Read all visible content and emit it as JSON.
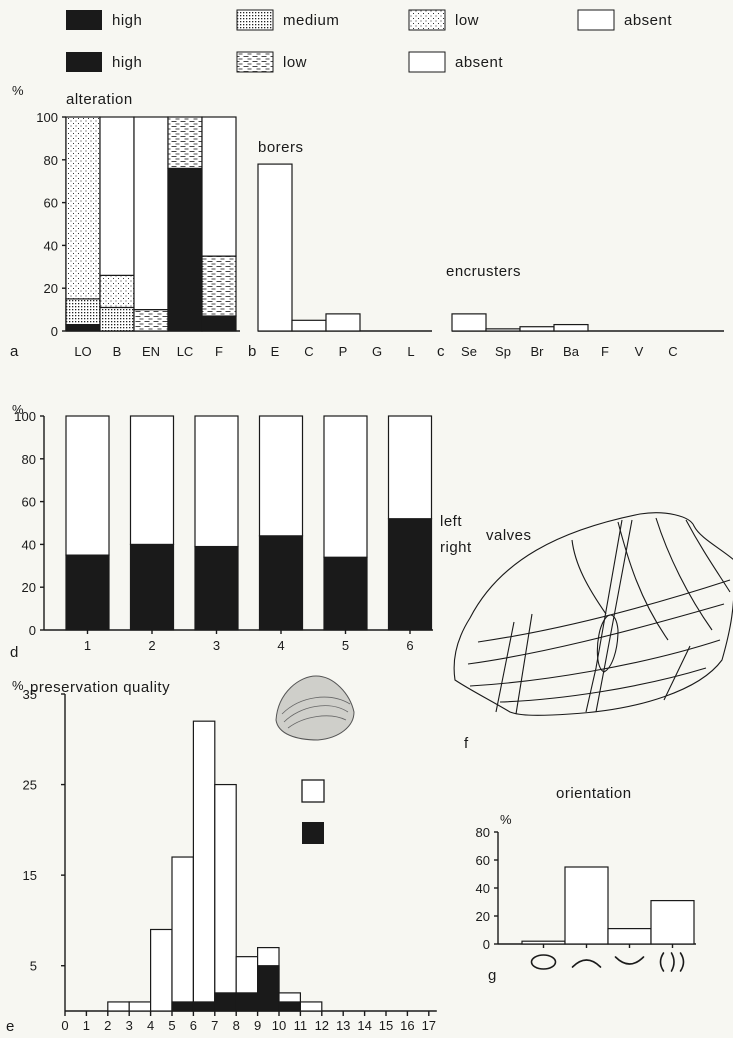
{
  "legend": {
    "alteration_row": [
      {
        "label": "high",
        "pattern": "solid"
      },
      {
        "label": "medium",
        "pattern": "dense-dots"
      },
      {
        "label": "low",
        "pattern": "sparse-dots"
      },
      {
        "label": "absent",
        "pattern": "empty"
      }
    ],
    "bioerosion_row": [
      {
        "label": "high",
        "pattern": "solid"
      },
      {
        "label": "low",
        "pattern": "dashes"
      },
      {
        "label": "absent",
        "pattern": "empty"
      }
    ]
  },
  "colors": {
    "ink": "#1a1a1a",
    "paper": "#f7f7f2"
  },
  "charts": {
    "a": {
      "panel_letter": "a",
      "title": "alteration",
      "unit": "%"
    },
    "b": {
      "panel_letter": "b",
      "title": "borers"
    },
    "c": {
      "panel_letter": "c",
      "title": "encrusters"
    },
    "d": {
      "panel_letter": "d",
      "unit": "%",
      "label_left": "left",
      "label_right": "right",
      "label_valves": "valves"
    },
    "e": {
      "panel_letter": "e",
      "title": "preservation quality",
      "unit": "%"
    },
    "f": {
      "panel_letter": "f"
    },
    "g": {
      "panel_letter": "g",
      "title": "orientation",
      "unit": "%"
    }
  },
  "chart_data": [
    {
      "id": "a",
      "type": "bar",
      "stacked": true,
      "title": "alteration",
      "ylabel": "%",
      "ylim": [
        0,
        100
      ],
      "yticks": [
        0,
        20,
        40,
        60,
        80,
        100
      ],
      "categories": [
        "LO",
        "B",
        "EN",
        "LC",
        "F"
      ],
      "series": [
        {
          "name": "high",
          "pattern": "solid",
          "values": [
            3,
            0,
            0,
            76,
            7
          ]
        },
        {
          "name": "medium",
          "pattern": "dense-dots",
          "values": [
            12,
            11,
            0,
            0,
            0
          ]
        },
        {
          "name": "low",
          "pattern": "sparse-dots",
          "values": [
            85,
            15,
            0,
            0,
            0
          ]
        },
        {
          "name": "low",
          "pattern": "dashes",
          "values": [
            0,
            0,
            10,
            24,
            28
          ]
        },
        {
          "name": "absent",
          "pattern": "empty",
          "values": [
            0,
            74,
            90,
            0,
            65
          ]
        }
      ]
    },
    {
      "id": "b",
      "type": "bar",
      "title": "borers",
      "ylim": [
        0,
        100
      ],
      "categories": [
        "E",
        "C",
        "P",
        "G",
        "L"
      ],
      "values": [
        78,
        5,
        8,
        0,
        0
      ]
    },
    {
      "id": "c",
      "type": "bar",
      "title": "encrusters",
      "ylim": [
        0,
        100
      ],
      "categories": [
        "Se",
        "Sp",
        "Br",
        "Ba",
        "F",
        "V",
        "C"
      ],
      "values": [
        8,
        1,
        2,
        3,
        0,
        0,
        0
      ]
    },
    {
      "id": "d",
      "type": "bar",
      "stacked": true,
      "ylabel": "%",
      "ylim": [
        0,
        100
      ],
      "yticks": [
        0,
        20,
        40,
        60,
        80,
        100
      ],
      "categories": [
        "1",
        "2",
        "3",
        "4",
        "5",
        "6"
      ],
      "series": [
        {
          "name": "right",
          "pattern": "solid",
          "values": [
            35,
            40,
            39,
            44,
            34,
            52
          ]
        },
        {
          "name": "left",
          "pattern": "empty",
          "values": [
            65,
            60,
            61,
            56,
            66,
            48
          ]
        }
      ]
    },
    {
      "id": "e",
      "type": "bar",
      "title": "preservation quality",
      "ylabel": "%",
      "ylim": [
        0,
        35
      ],
      "yticks": [
        5,
        15,
        25,
        35
      ],
      "categories": [
        "0",
        "1",
        "2",
        "3",
        "4",
        "5",
        "6",
        "7",
        "8",
        "9",
        "10",
        "11",
        "12",
        "13",
        "14",
        "15",
        "16",
        "17"
      ],
      "series": [
        {
          "name": "total",
          "pattern": "empty",
          "values": [
            0,
            0,
            1,
            1,
            9,
            17,
            32,
            25,
            6,
            7,
            2,
            1,
            0,
            0,
            0,
            0,
            0,
            0
          ]
        },
        {
          "name": "filled",
          "pattern": "solid",
          "values": [
            0,
            0,
            0,
            0,
            0,
            1,
            1,
            2,
            2,
            5,
            1,
            0,
            0,
            0,
            0,
            0,
            0,
            0
          ]
        }
      ]
    },
    {
      "id": "g",
      "type": "bar",
      "title": "orientation",
      "ylabel": "%",
      "ylim": [
        0,
        80
      ],
      "yticks": [
        0,
        20,
        40,
        60,
        80
      ],
      "categories": [
        "circle",
        "convex-up",
        "concave-up",
        "vertical"
      ],
      "values": [
        2,
        55,
        11,
        31
      ]
    }
  ]
}
